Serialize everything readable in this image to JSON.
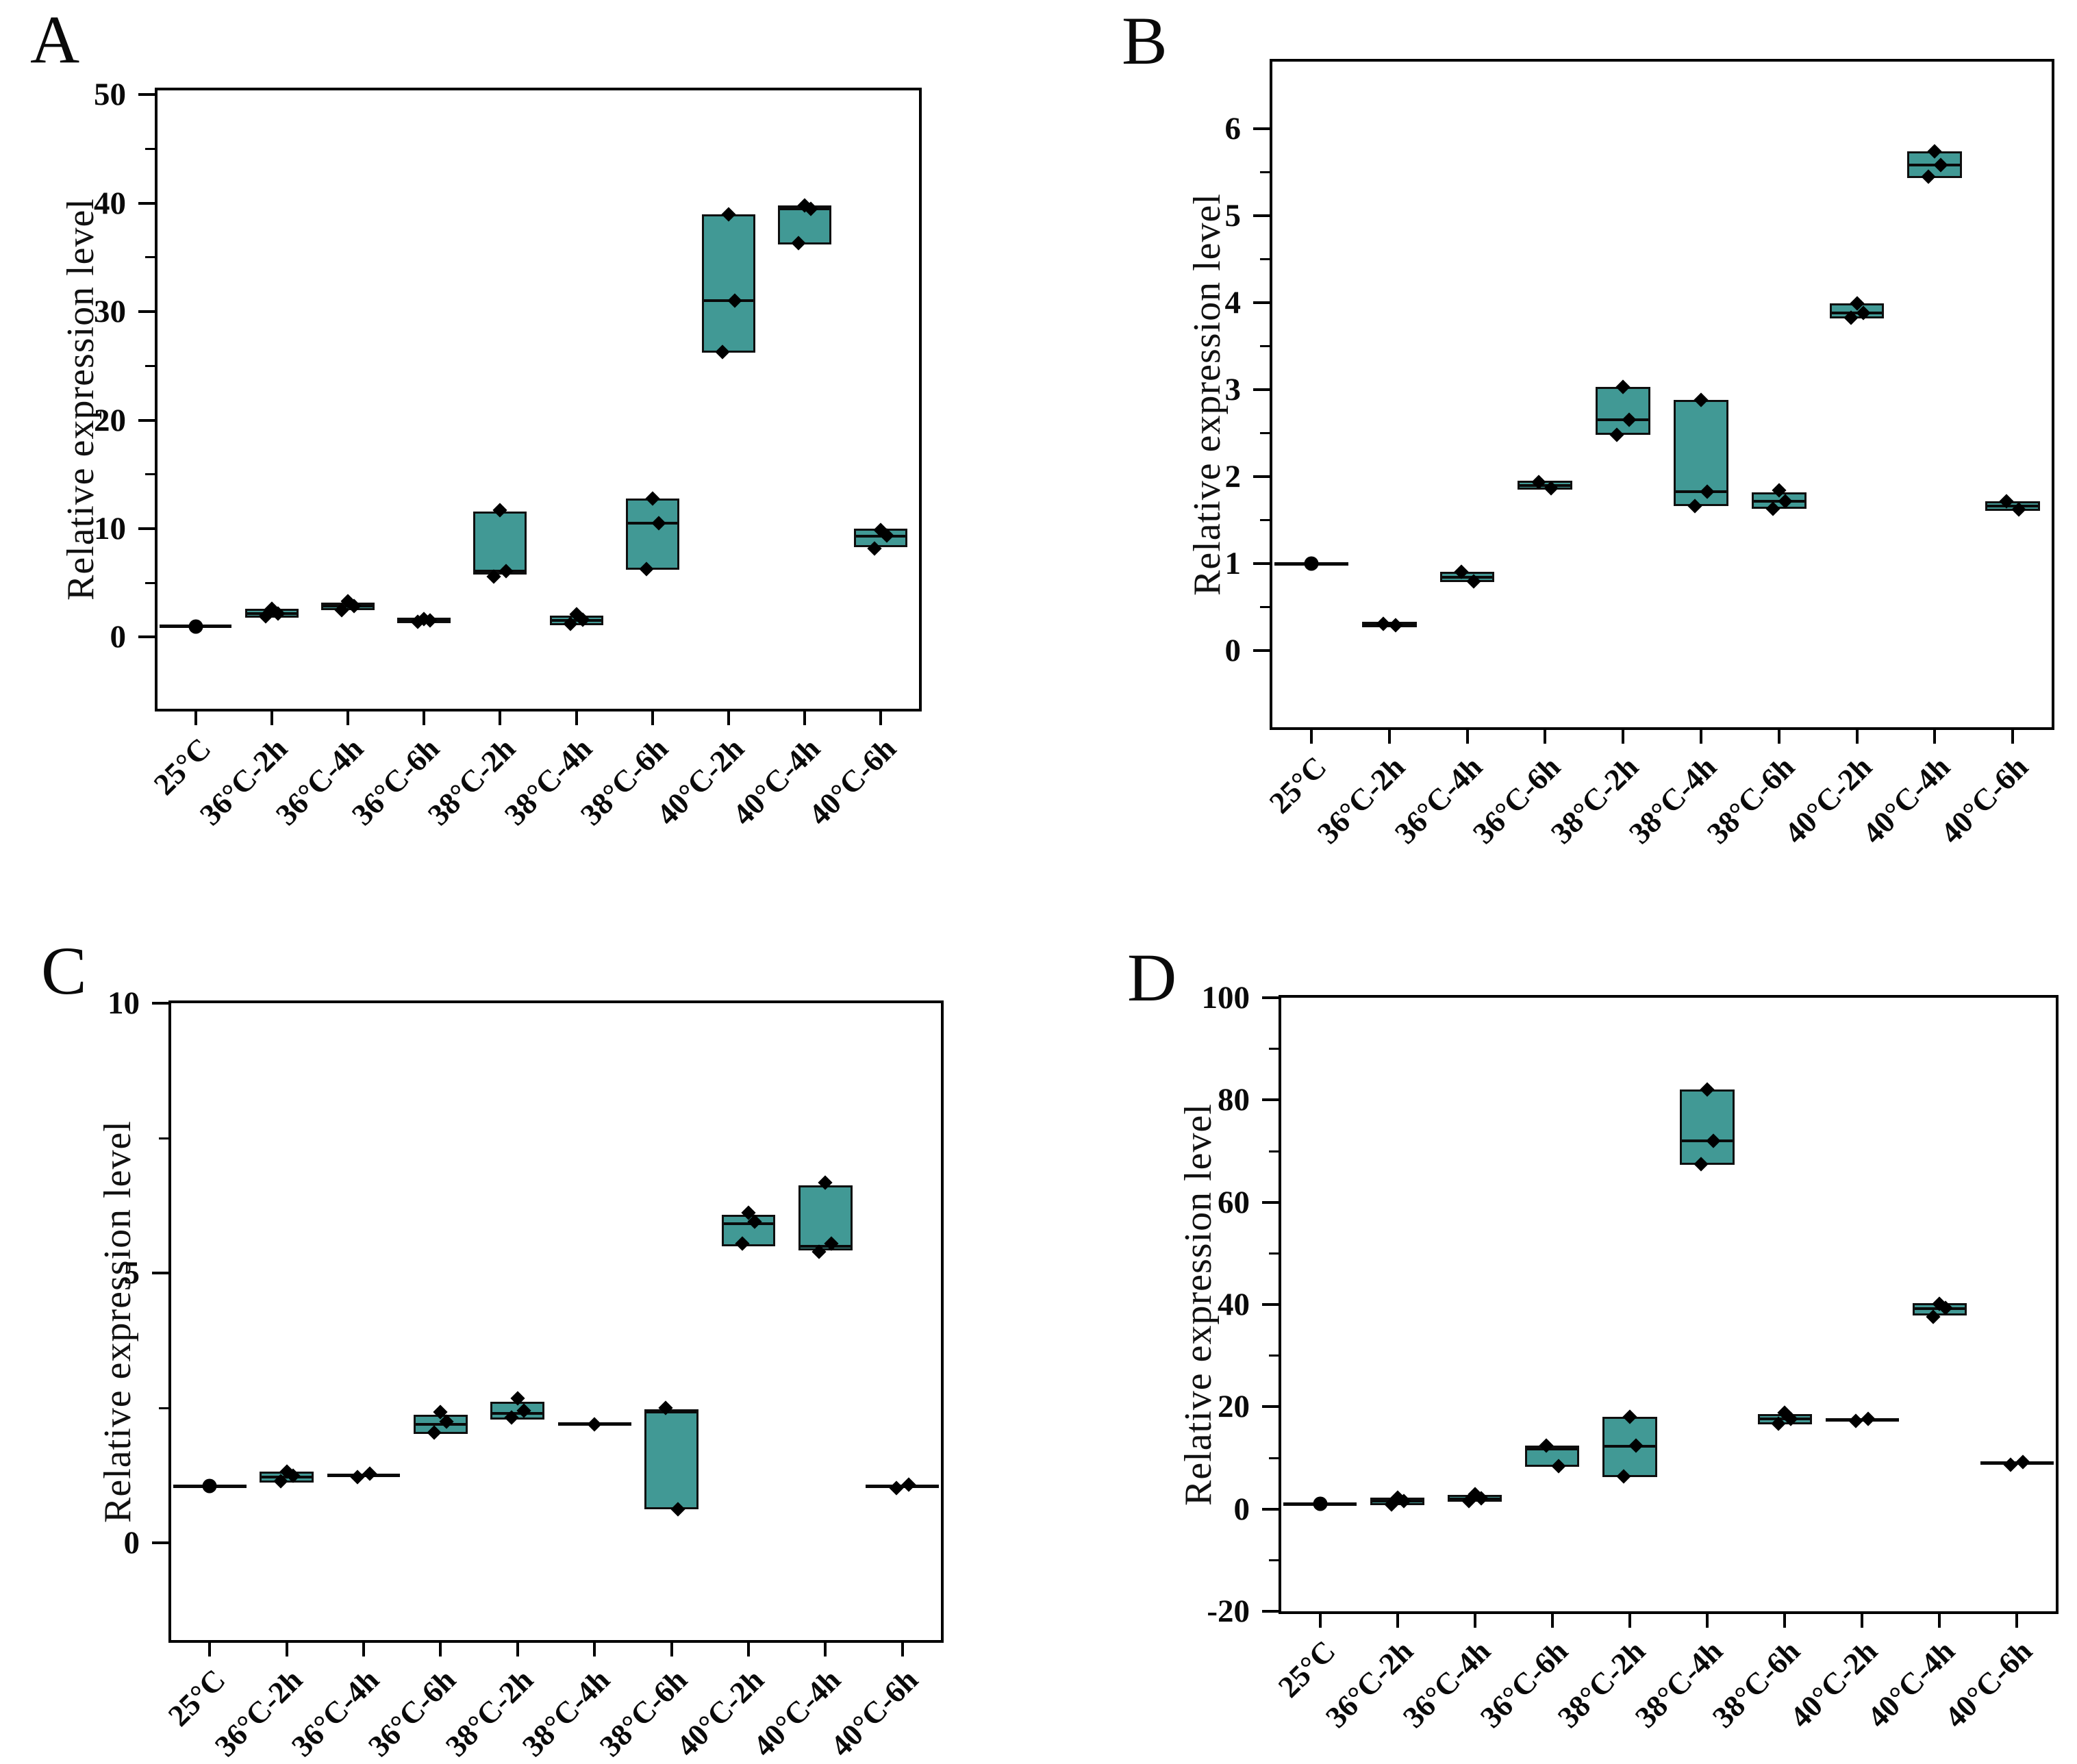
{
  "ui": {
    "panel_letters": {
      "a": "A",
      "b": "B",
      "c": "C",
      "d": "D"
    }
  },
  "colors": {
    "box_fill": "#419995",
    "box_border": "#0f0f0f",
    "marker": "#000000",
    "axis": "#000000"
  },
  "chart_data": [
    {
      "panel": "A",
      "type": "box",
      "ylabel": "Relative expression level",
      "xlabel": "",
      "ylim": [
        -6.6,
        50.4
      ],
      "yticks": [
        0,
        10,
        20,
        30,
        40,
        50
      ],
      "minor_yticks": [
        5,
        15,
        25,
        35,
        45
      ],
      "grid": false,
      "legend": false,
      "categories": [
        "25°C",
        "36°C-2h",
        "36°C-4h",
        "36°C-6h",
        "38°C-2h",
        "38°C-4h",
        "38°C-6h",
        "40°C-2h",
        "40°C-4h",
        "40°C-6h"
      ],
      "boxes": [
        {
          "category": "25°C",
          "low": null,
          "median": null,
          "high": null,
          "line": 1.0,
          "points": [
            1.0
          ],
          "marker": "circle"
        },
        {
          "category": "36°C-2h",
          "low": 1.8,
          "median": 2.2,
          "high": 2.6,
          "line": null,
          "points": [
            2.6,
            2.2,
            1.9
          ],
          "marker": "diamond"
        },
        {
          "category": "36°C-4h",
          "low": 2.5,
          "median": 2.9,
          "high": 3.2,
          "line": null,
          "points": [
            3.3,
            2.9,
            2.5
          ],
          "marker": "diamond"
        },
        {
          "category": "36°C-6h",
          "low": 1.3,
          "median": 1.55,
          "high": 1.8,
          "line": null,
          "points": [
            1.7,
            1.55,
            1.4
          ],
          "marker": "diamond"
        },
        {
          "category": "38°C-2h",
          "low": 5.8,
          "median": 6.1,
          "high": 11.6,
          "line": null,
          "points": [
            11.7,
            6.1,
            5.6
          ],
          "marker": "diamond"
        },
        {
          "category": "38°C-4h",
          "low": 1.1,
          "median": 1.55,
          "high": 2.0,
          "line": null,
          "points": [
            2.1,
            1.6,
            1.2
          ],
          "marker": "diamond"
        },
        {
          "category": "38°C-6h",
          "low": 6.2,
          "median": 10.5,
          "high": 12.8,
          "line": null,
          "points": [
            12.8,
            10.5,
            6.3
          ],
          "marker": "diamond"
        },
        {
          "category": "40°C-2h",
          "low": 26.2,
          "median": 31.0,
          "high": 39.0,
          "line": null,
          "points": [
            39.0,
            31.0,
            26.3
          ],
          "marker": "diamond"
        },
        {
          "category": "40°C-4h",
          "low": 36.2,
          "median": 39.5,
          "high": 39.8,
          "line": null,
          "points": [
            39.8,
            39.5,
            36.3
          ],
          "marker": "diamond"
        },
        {
          "category": "40°C-6h",
          "low": 8.3,
          "median": 9.3,
          "high": 10.0,
          "line": null,
          "points": [
            9.9,
            9.4,
            8.2
          ],
          "marker": "diamond"
        }
      ]
    },
    {
      "panel": "B",
      "type": "box",
      "ylabel": "Relative expression level",
      "xlabel": "",
      "ylim": [
        -0.88,
        6.77
      ],
      "yticks": [
        0,
        1,
        2,
        3,
        4,
        5,
        6
      ],
      "minor_yticks": [
        0.5,
        1.5,
        2.5,
        3.5,
        4.5,
        5.5
      ],
      "grid": false,
      "legend": false,
      "categories": [
        "25°C",
        "36°C-2h",
        "36°C-4h",
        "36°C-6h",
        "38°C-2h",
        "38°C-4h",
        "38°C-6h",
        "40°C-2h",
        "40°C-4h",
        "40°C-6h"
      ],
      "boxes": [
        {
          "category": "25°C",
          "low": null,
          "median": null,
          "high": null,
          "line": 1.0,
          "points": [
            1.0
          ],
          "marker": "circle"
        },
        {
          "category": "36°C-2h",
          "low": 0.27,
          "median": 0.3,
          "high": 0.33,
          "line": null,
          "points": [
            0.31,
            0.29
          ],
          "marker": "diamond"
        },
        {
          "category": "36°C-4h",
          "low": 0.79,
          "median": 0.84,
          "high": 0.91,
          "line": null,
          "points": [
            0.91,
            0.8
          ],
          "marker": "diamond"
        },
        {
          "category": "36°C-6h",
          "low": 1.85,
          "median": 1.9,
          "high": 1.95,
          "line": null,
          "points": [
            1.94,
            1.87
          ],
          "marker": "diamond"
        },
        {
          "category": "38°C-2h",
          "low": 2.48,
          "median": 2.65,
          "high": 3.03,
          "line": null,
          "points": [
            3.03,
            2.65,
            2.48
          ],
          "marker": "diamond"
        },
        {
          "category": "38°C-4h",
          "low": 1.66,
          "median": 1.83,
          "high": 2.88,
          "line": null,
          "points": [
            2.88,
            1.83,
            1.66
          ],
          "marker": "diamond"
        },
        {
          "category": "38°C-6h",
          "low": 1.63,
          "median": 1.72,
          "high": 1.82,
          "line": null,
          "points": [
            1.84,
            1.72,
            1.63
          ],
          "marker": "diamond"
        },
        {
          "category": "40°C-2h",
          "low": 3.82,
          "median": 3.88,
          "high": 3.99,
          "line": null,
          "points": [
            3.99,
            3.88,
            3.83
          ],
          "marker": "diamond"
        },
        {
          "category": "40°C-4h",
          "low": 5.43,
          "median": 5.58,
          "high": 5.74,
          "line": null,
          "points": [
            5.74,
            5.58,
            5.45
          ],
          "marker": "diamond"
        },
        {
          "category": "40°C-6h",
          "low": 1.61,
          "median": 1.66,
          "high": 1.72,
          "line": null,
          "points": [
            1.72,
            1.62
          ],
          "marker": "diamond"
        }
      ]
    },
    {
      "panel": "C",
      "type": "box",
      "ylabel": "Relative expression level",
      "xlabel": "",
      "ylim": [
        -1.8,
        10
      ],
      "yticks": [
        0,
        5,
        10
      ],
      "minor_yticks": [
        2.5,
        7.5
      ],
      "grid": false,
      "legend": false,
      "categories": [
        "25°C",
        "36°C-2h",
        "36°C-4h",
        "36°C-6h",
        "38°C-2h",
        "38°C-4h",
        "38°C-6h",
        "40°C-2h",
        "40°C-4h",
        "40°C-6h"
      ],
      "boxes": [
        {
          "category": "25°C",
          "low": null,
          "median": null,
          "high": null,
          "line": 1.05,
          "points": [
            1.05
          ],
          "marker": "circle"
        },
        {
          "category": "36°C-2h",
          "low": 1.12,
          "median": 1.22,
          "high": 1.32,
          "line": null,
          "points": [
            1.32,
            1.25,
            1.15
          ],
          "marker": "diamond"
        },
        {
          "category": "36°C-4h",
          "low": null,
          "median": null,
          "high": null,
          "line": 1.25,
          "points": [
            1.22,
            1.28
          ],
          "marker": "diamond"
        },
        {
          "category": "36°C-6h",
          "low": 2.02,
          "median": 2.2,
          "high": 2.38,
          "line": null,
          "points": [
            2.42,
            2.25,
            2.05
          ],
          "marker": "diamond"
        },
        {
          "category": "38°C-2h",
          "low": 2.28,
          "median": 2.4,
          "high": 2.62,
          "line": null,
          "points": [
            2.68,
            2.45,
            2.32
          ],
          "marker": "diamond"
        },
        {
          "category": "38°C-4h",
          "low": null,
          "median": null,
          "high": null,
          "line": 2.2,
          "points": [
            2.2
          ],
          "marker": "diamond"
        },
        {
          "category": "38°C-6h",
          "low": 0.62,
          "median": 2.42,
          "high": 2.48,
          "line": null,
          "points": [
            2.5,
            0.62
          ],
          "marker": "diamond"
        },
        {
          "category": "40°C-2h",
          "low": 5.5,
          "median": 5.92,
          "high": 6.08,
          "line": null,
          "points": [
            6.12,
            5.95,
            5.55
          ],
          "marker": "diamond"
        },
        {
          "category": "40°C-4h",
          "low": 5.42,
          "median": 5.5,
          "high": 6.62,
          "line": null,
          "points": [
            6.68,
            5.55,
            5.4
          ],
          "marker": "diamond"
        },
        {
          "category": "40°C-6h",
          "low": null,
          "median": null,
          "high": null,
          "line": 1.05,
          "points": [
            1.02,
            1.08
          ],
          "marker": "diamond"
        }
      ]
    },
    {
      "panel": "D",
      "type": "box",
      "ylabel": "Relative expression level",
      "xlabel": "",
      "ylim": [
        -20,
        100
      ],
      "yticks": [
        -20,
        0,
        20,
        40,
        60,
        80,
        100
      ],
      "minor_yticks": [
        -10,
        10,
        30,
        50,
        70,
        90
      ],
      "grid": false,
      "legend": false,
      "categories": [
        "25°C",
        "36°C-2h",
        "36°C-4h",
        "36°C-6h",
        "38°C-2h",
        "38°C-4h",
        "38°C-6h",
        "40°C-2h",
        "40°C-4h",
        "40°C-6h"
      ],
      "boxes": [
        {
          "category": "25°C",
          "low": null,
          "median": null,
          "high": null,
          "line": 1.0,
          "points": [
            1.0
          ],
          "marker": "circle"
        },
        {
          "category": "36°C-2h",
          "low": 0.8,
          "median": 1.5,
          "high": 2.2,
          "line": null,
          "points": [
            2.2,
            1.5,
            0.9
          ],
          "marker": "diamond"
        },
        {
          "category": "36°C-4h",
          "low": 1.4,
          "median": 2.0,
          "high": 2.8,
          "line": null,
          "points": [
            2.9,
            2.1,
            1.5
          ],
          "marker": "diamond"
        },
        {
          "category": "36°C-6h",
          "low": 8.3,
          "median": 11.8,
          "high": 12.4,
          "line": null,
          "points": [
            12.4,
            8.4
          ],
          "marker": "diamond"
        },
        {
          "category": "38°C-2h",
          "low": 6.3,
          "median": 12.3,
          "high": 18.0,
          "line": null,
          "points": [
            18.1,
            12.4,
            6.4
          ],
          "marker": "diamond"
        },
        {
          "category": "38°C-4h",
          "low": 67.3,
          "median": 72.0,
          "high": 82.0,
          "line": null,
          "points": [
            82.1,
            72.0,
            67.4
          ],
          "marker": "diamond"
        },
        {
          "category": "38°C-6h",
          "low": 16.6,
          "median": 17.6,
          "high": 18.6,
          "line": null,
          "points": [
            18.8,
            17.7,
            16.7
          ],
          "marker": "diamond"
        },
        {
          "category": "40°C-2h",
          "low": null,
          "median": null,
          "high": null,
          "line": 17.4,
          "points": [
            17.2,
            17.6
          ],
          "marker": "diamond"
        },
        {
          "category": "40°C-4h",
          "low": 37.8,
          "median": 39.2,
          "high": 40.3,
          "line": null,
          "points": [
            40.2,
            39.3,
            37.6
          ],
          "marker": "diamond"
        },
        {
          "category": "40°C-6h",
          "low": null,
          "median": null,
          "high": null,
          "line": 9.0,
          "points": [
            8.7,
            9.2
          ],
          "marker": "diamond"
        }
      ]
    }
  ]
}
